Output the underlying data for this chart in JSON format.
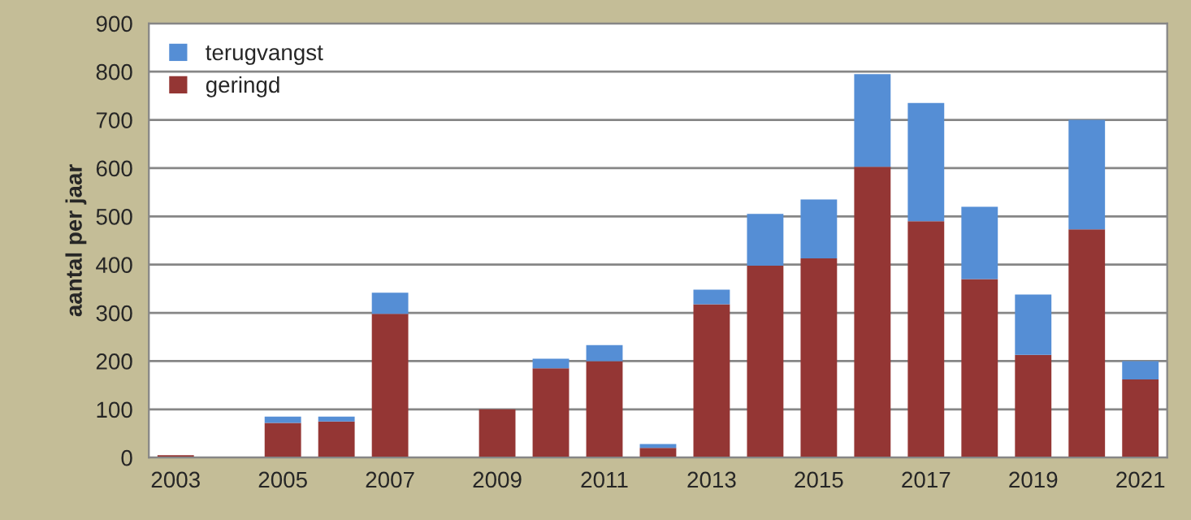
{
  "chart_data": {
    "type": "bar",
    "stacked": true,
    "ylabel": "aantal per jaar",
    "categories": [
      "2003",
      null,
      "2005",
      null,
      "2007",
      null,
      "2009",
      null,
      "2011",
      null,
      "2013",
      null,
      "2015",
      null,
      "2017",
      null,
      "2019",
      null,
      "2021"
    ],
    "series": [
      {
        "name": "geringd",
        "color": "#943634",
        "values": [
          5,
          0,
          72,
          75,
          298,
          0,
          100,
          185,
          200,
          20,
          318,
          398,
          413,
          603,
          490,
          370,
          213,
          473,
          162
        ]
      },
      {
        "name": "terugvangst",
        "color": "#558ed5",
        "values": [
          0,
          0,
          13,
          10,
          44,
          0,
          0,
          20,
          33,
          8,
          30,
          107,
          122,
          192,
          245,
          150,
          125,
          227,
          38
        ]
      }
    ],
    "ylim": [
      0,
      900
    ],
    "yticks": [
      0,
      100,
      200,
      300,
      400,
      500,
      600,
      700,
      800,
      900
    ],
    "grid": "y",
    "legend": "top left"
  }
}
